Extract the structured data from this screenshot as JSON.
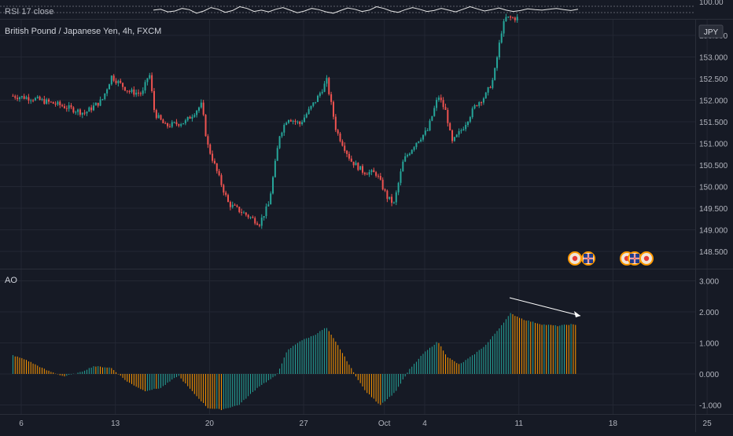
{
  "rsi": {
    "label": "RSI 17 close",
    "tick_label": "100.00",
    "series": [
      62,
      64,
      58,
      60,
      66,
      63,
      55,
      60,
      68,
      64,
      57,
      61,
      70,
      66,
      59,
      62,
      58,
      64,
      68,
      62,
      56,
      60,
      66,
      63,
      58,
      55,
      61,
      67,
      64,
      59,
      62,
      70,
      66,
      60,
      57,
      63,
      68,
      64,
      59,
      61,
      66,
      62,
      58,
      64,
      70,
      65,
      60,
      63,
      67,
      62,
      59,
      61,
      65,
      63,
      62,
      64,
      66,
      63,
      61,
      64
    ]
  },
  "main": {
    "symbol_title": "British Pound / Japanese Yen, 4h, FXCM",
    "currency_badge": "JPY",
    "price_ticks": [
      "153.500",
      "153.000",
      "152.500",
      "152.000",
      "151.500",
      "151.000",
      "150.500",
      "150.000",
      "149.500",
      "149.000",
      "148.500"
    ],
    "event_markers": [
      {
        "x_day": 14,
        "icons": [
          "jp-flag-icon",
          "uk-flag-icon"
        ]
      },
      {
        "x_day": 17.9,
        "icons": [
          "jp-flag-icon",
          "uk-flag-icon",
          "jp-flag-icon"
        ]
      }
    ]
  },
  "ao": {
    "label": "AO",
    "ticks": [
      "3.000",
      "2.000",
      "1.000",
      "0.000",
      "-1.000"
    ],
    "divergence_arrow": {
      "from": [
        11.6,
        2.45
      ],
      "to": [
        14.6,
        1.85
      ]
    }
  },
  "x_axis": {
    "ticks": [
      {
        "label": "6",
        "day": -1
      },
      {
        "label": "13",
        "day": 6
      },
      {
        "label": "20",
        "day": 13
      },
      {
        "label": "27",
        "day": 20
      },
      {
        "label": "Oct",
        "day": 26
      },
      {
        "label": "4",
        "day": 29
      },
      {
        "label": "11",
        "day": 36
      },
      {
        "label": "18",
        "day": 43
      },
      {
        "label": "25",
        "day": 50
      }
    ]
  },
  "colors": {
    "background": "#161a25",
    "grid": "#232733",
    "bull": "#26a69a",
    "bear": "#ef5350",
    "ao_up": "#26a69a",
    "ao_down": "#ff9800",
    "text": "#b2b5be",
    "rsi_line": "#e8e8e8"
  },
  "chart_data": {
    "type": "candlestick",
    "title": "British Pound / Japanese Yen, 4h, FXCM",
    "price_range": [
      148.3,
      153.8
    ],
    "ao_range": [
      -1.25,
      3.3
    ],
    "x_start_day": 0,
    "days_span": 38.5,
    "price_path": [
      [
        0,
        152.1
      ],
      [
        1.5,
        152.05
      ],
      [
        3.5,
        151.9
      ],
      [
        5.5,
        151.7
      ],
      [
        6.8,
        152.0
      ],
      [
        7.5,
        152.55
      ],
      [
        8.8,
        152.2
      ],
      [
        9.8,
        152.15
      ],
      [
        10.3,
        152.65
      ],
      [
        10.7,
        151.7
      ],
      [
        11.5,
        151.4
      ],
      [
        13,
        151.5
      ],
      [
        14.2,
        151.9
      ],
      [
        14.6,
        151.0
      ],
      [
        15.5,
        150.2
      ],
      [
        16.2,
        149.6
      ],
      [
        17.5,
        149.35
      ],
      [
        18.5,
        149.15
      ],
      [
        19.2,
        149.6
      ],
      [
        20,
        151.2
      ],
      [
        20.6,
        151.6
      ],
      [
        21.5,
        151.45
      ],
      [
        22.8,
        152.05
      ],
      [
        23.5,
        152.45
      ],
      [
        24.2,
        151.3
      ],
      [
        25.3,
        150.6
      ],
      [
        26.2,
        150.35
      ],
      [
        27.2,
        150.3
      ],
      [
        28,
        149.75
      ],
      [
        28.5,
        149.6
      ],
      [
        29.2,
        150.6
      ],
      [
        30.2,
        151.05
      ],
      [
        31,
        151.3
      ],
      [
        31.8,
        152.1
      ],
      [
        32.4,
        151.7
      ],
      [
        32.8,
        151.0
      ],
      [
        33.6,
        151.35
      ],
      [
        34.6,
        151.9
      ],
      [
        35.3,
        152.1
      ],
      [
        35.9,
        152.5
      ],
      [
        36.5,
        153.6
      ],
      [
        36.8,
        153.9
      ]
    ],
    "ao_path": [
      [
        0,
        0.6
      ],
      [
        1,
        0.45
      ],
      [
        2.5,
        0.12
      ],
      [
        3.8,
        -0.08
      ],
      [
        5,
        0.05
      ],
      [
        6,
        0.25
      ],
      [
        7.3,
        0.2
      ],
      [
        8.5,
        -0.25
      ],
      [
        9.8,
        -0.55
      ],
      [
        11,
        -0.45
      ],
      [
        12.3,
        -0.05
      ],
      [
        13.3,
        -0.55
      ],
      [
        14.5,
        -1.1
      ],
      [
        15.5,
        -1.15
      ],
      [
        16.8,
        -1.0
      ],
      [
        18.3,
        -0.4
      ],
      [
        19.6,
        -0.05
      ],
      [
        20.4,
        0.75
      ],
      [
        21.3,
        1.05
      ],
      [
        22.4,
        1.25
      ],
      [
        23.3,
        1.5
      ],
      [
        24.2,
        0.9
      ],
      [
        25.4,
        0.0
      ],
      [
        26.2,
        -0.55
      ],
      [
        27.3,
        -1.0
      ],
      [
        28.4,
        -0.6
      ],
      [
        29.5,
        0.15
      ],
      [
        30.5,
        0.65
      ],
      [
        31.6,
        1.05
      ],
      [
        32.3,
        0.55
      ],
      [
        33.2,
        0.3
      ],
      [
        34.2,
        0.6
      ],
      [
        35.2,
        0.95
      ],
      [
        36.2,
        1.5
      ],
      [
        37.0,
        1.95
      ],
      [
        38.0,
        1.75
      ],
      [
        39.3,
        1.6
      ],
      [
        40.5,
        1.55
      ],
      [
        41.5,
        1.6
      ],
      [
        42.1,
        1.55
      ]
    ]
  }
}
